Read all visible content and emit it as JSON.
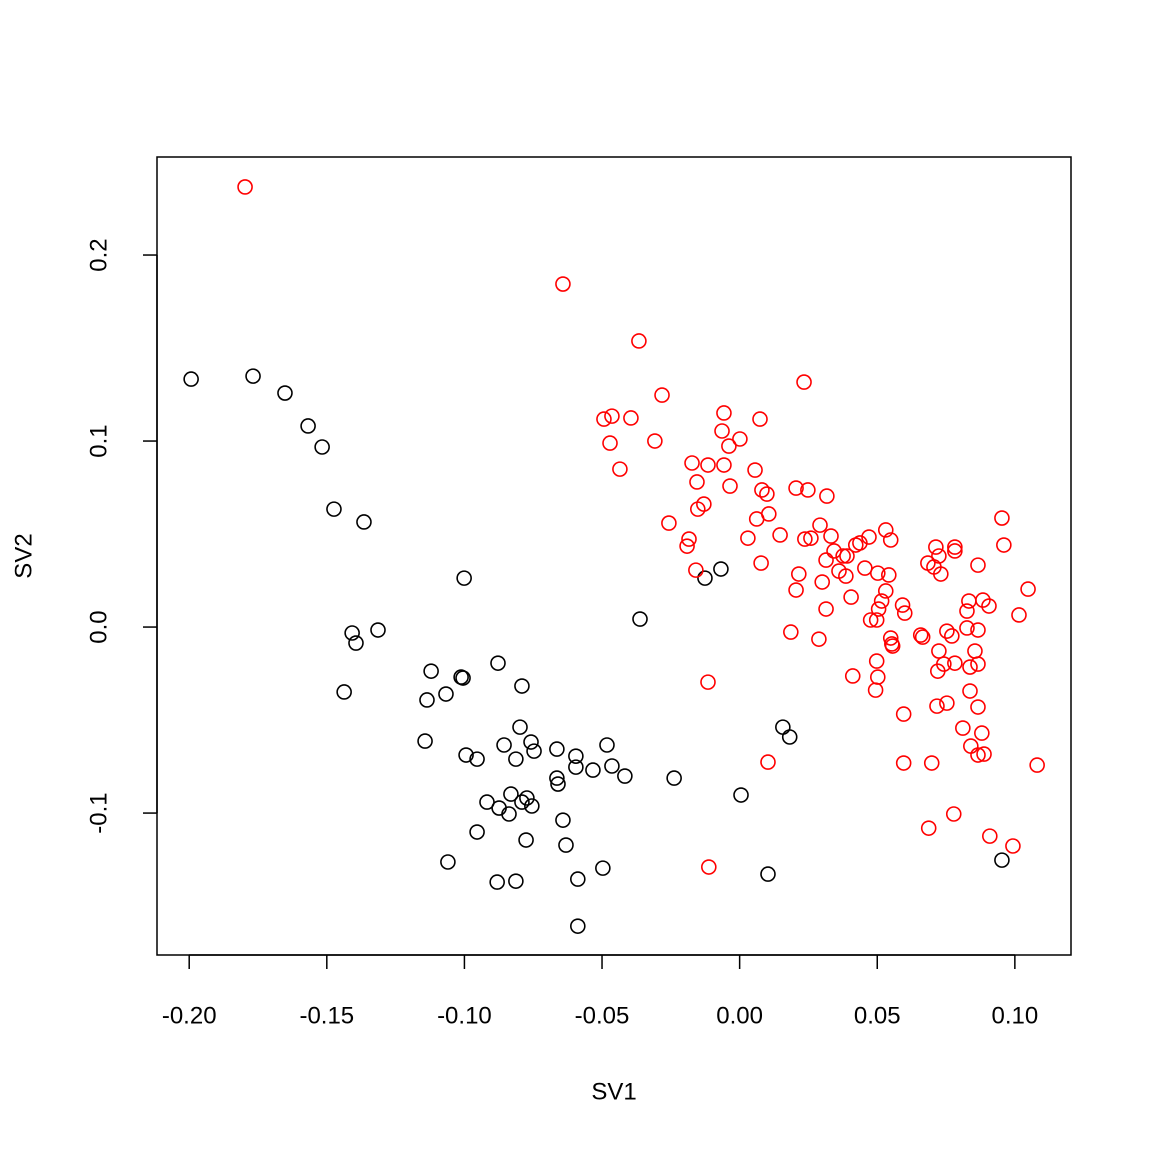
{
  "chart_data": {
    "type": "scatter",
    "xlabel": "SV1",
    "ylabel": "SV2",
    "xlim": [
      -0.2117,
      0.1204
    ],
    "ylim": [
      -0.1763,
      0.2527
    ],
    "xticks": [
      {
        "value": -0.2,
        "label": "-0.20"
      },
      {
        "value": -0.15,
        "label": "-0.15"
      },
      {
        "value": -0.1,
        "label": "-0.10"
      },
      {
        "value": -0.05,
        "label": "-0.05"
      },
      {
        "value": 0,
        "label": "0.00"
      },
      {
        "value": 0.05,
        "label": "0.05"
      },
      {
        "value": 0.1,
        "label": "0.10"
      }
    ],
    "yticks": [
      -0.1,
      {
        "value": 0,
        "label": "0.0"
      },
      0.1,
      0.2
    ],
    "series": [
      {
        "color": "#000000",
        "x": [
          -0.1993,
          -0.1768,
          -0.1652,
          -0.1568,
          -0.1517,
          -0.1474,
          -0.1365,
          -0.1001,
          -0.1408,
          -0.1394,
          -0.1314,
          -0.1437,
          -0.1121,
          -0.1136,
          -0.1067,
          -0.1012,
          -0.1005,
          -0.0878,
          -0.0791,
          -0.1143,
          -0.0994,
          -0.0954,
          -0.0856,
          -0.0798,
          -0.0813,
          -0.0758,
          -0.0747,
          -0.0664,
          -0.0595,
          -0.0595,
          -0.0533,
          -0.0482,
          -0.0464,
          -0.0417,
          -0.0664,
          -0.066,
          -0.0918,
          -0.0874,
          -0.0831,
          -0.0838,
          -0.0791,
          -0.0773,
          -0.0755,
          -0.0954,
          -0.0776,
          -0.0642,
          -0.0631,
          -0.106,
          -0.0881,
          -0.0813,
          -0.0588,
          -0.0497,
          -0.0588,
          -0.0238,
          -0.0362,
          -0.0126,
          -0.0068,
          0.0005,
          0.0157,
          0.0182,
          0.0103,
          0.0953
        ],
        "values": [
          0.1333,
          0.1349,
          0.1258,
          0.1081,
          0.0968,
          0.0634,
          0.0565,
          0.0263,
          -0.0032,
          -0.0086,
          -0.0016,
          -0.0349,
          -0.0237,
          -0.0392,
          -0.036,
          -0.0269,
          -0.0274,
          -0.0194,
          -0.0317,
          -0.0613,
          -0.0688,
          -0.071,
          -0.0634,
          -0.0538,
          -0.071,
          -0.0618,
          -0.0667,
          -0.0656,
          -0.0694,
          -0.0753,
          -0.0769,
          -0.0634,
          -0.0747,
          -0.0801,
          -0.0812,
          -0.0844,
          -0.0941,
          -0.0973,
          -0.0898,
          -0.1005,
          -0.0941,
          -0.0919,
          -0.0962,
          -0.1102,
          -0.1145,
          -0.1038,
          -0.1172,
          -0.1263,
          -0.1371,
          -0.1366,
          -0.1355,
          -0.1296,
          -0.1608,
          -0.0812,
          0.0043,
          0.0263,
          0.0312,
          -0.0903,
          -0.0538,
          -0.0591,
          -0.1328,
          -0.1253
        ]
      },
      {
        "color": "#ff0000",
        "x": [
          -0.1797,
          -0.0642,
          -0.0366,
          -0.0282,
          -0.0493,
          -0.0464,
          -0.0395,
          -0.0471,
          -0.0308,
          -0.0435,
          -0.0057,
          -0.0064,
          0.0074,
          0.0001,
          -0.0039,
          0.0234,
          -0.0173,
          -0.0115,
          -0.0057,
          -0.0155,
          -0.0035,
          0.0056,
          0.0081,
          0.0099,
          -0.013,
          -0.0152,
          -0.0257,
          -0.0184,
          -0.0191,
          -0.0159,
          0.0106,
          0.0062,
          0.003,
          0.0078,
          0.0147,
          0.0205,
          0.0248,
          0.0317,
          0.0292,
          0.0237,
          0.0259,
          0.0332,
          0.0343,
          0.0314,
          0.0376,
          0.039,
          0.0361,
          0.0386,
          0.0422,
          0.0437,
          0.047,
          0.0531,
          0.0549,
          0.0455,
          0.0502,
          0.0542,
          0.0215,
          0.0205,
          0.03,
          0.0405,
          0.0314,
          0.0531,
          0.0516,
          0.0505,
          0.0476,
          0.0498,
          0.0592,
          0.06,
          0.0186,
          0.0288,
          0.0549,
          0.0553,
          0.0556,
          0.0658,
          0.0665,
          0.0498,
          0.0411,
          0.0502,
          0.0494,
          0.0596,
          0.0596,
          0.0698,
          -0.0115,
          0.0103,
          -0.0112,
          0.0684,
          0.0713,
          0.0724,
          0.0706,
          0.0731,
          0.0782,
          0.0782,
          0.0866,
          0.0953,
          0.096,
          0.1048,
          0.1015,
          0.0906,
          0.0884,
          0.0833,
          0.0826,
          0.0826,
          0.0753,
          0.0771,
          0.0866,
          0.0724,
          0.0855,
          0.0866,
          0.0782,
          0.0742,
          0.072,
          0.0837,
          0.0753,
          0.0717,
          0.0837,
          0.0866,
          0.0811,
          0.088,
          0.084,
          0.0866,
          0.0888,
          0.1081,
          0.0778,
          0.0687,
          0.0909,
          0.0993
        ],
        "values": [
          0.2366,
          0.1844,
          0.1538,
          0.1247,
          0.1118,
          0.1134,
          0.1124,
          0.0989,
          0.1,
          0.0849,
          0.1151,
          0.1054,
          0.1118,
          0.1011,
          0.0973,
          0.1317,
          0.0882,
          0.0871,
          0.0871,
          0.078,
          0.0758,
          0.0844,
          0.0737,
          0.0715,
          0.0661,
          0.0634,
          0.0559,
          0.0473,
          0.0435,
          0.0306,
          0.0608,
          0.0581,
          0.0478,
          0.0344,
          0.0495,
          0.0747,
          0.0737,
          0.0704,
          0.0548,
          0.0473,
          0.0478,
          0.0489,
          0.0409,
          0.036,
          0.0382,
          0.0382,
          0.0301,
          0.0274,
          0.0441,
          0.0452,
          0.0484,
          0.0522,
          0.0468,
          0.0317,
          0.029,
          0.028,
          0.0285,
          0.0199,
          0.0242,
          0.0161,
          0.0097,
          0.0194,
          0.014,
          0.0097,
          0.0038,
          0.0038,
          0.0118,
          0.0075,
          -0.0027,
          -0.0065,
          -0.0059,
          -0.0091,
          -0.0102,
          -0.0043,
          -0.0054,
          -0.0183,
          -0.0263,
          -0.0269,
          -0.0339,
          -0.0468,
          -0.0731,
          -0.0731,
          -0.0296,
          -0.0726,
          -0.129,
          0.0344,
          0.043,
          0.0382,
          0.0323,
          0.0285,
          0.043,
          0.0409,
          0.0333,
          0.0586,
          0.0441,
          0.0204,
          0.0065,
          0.0113,
          0.0145,
          0.014,
          0.0086,
          -0.0005,
          -0.0022,
          -0.0048,
          -0.0016,
          -0.0129,
          -0.0129,
          -0.0199,
          -0.0194,
          -0.0199,
          -0.0237,
          -0.0215,
          -0.0409,
          -0.0425,
          -0.0344,
          -0.043,
          -0.0543,
          -0.057,
          -0.064,
          -0.0688,
          -0.0683,
          -0.0742,
          -0.1005,
          -0.1081,
          -0.1124,
          -0.1177
        ]
      }
    ]
  }
}
